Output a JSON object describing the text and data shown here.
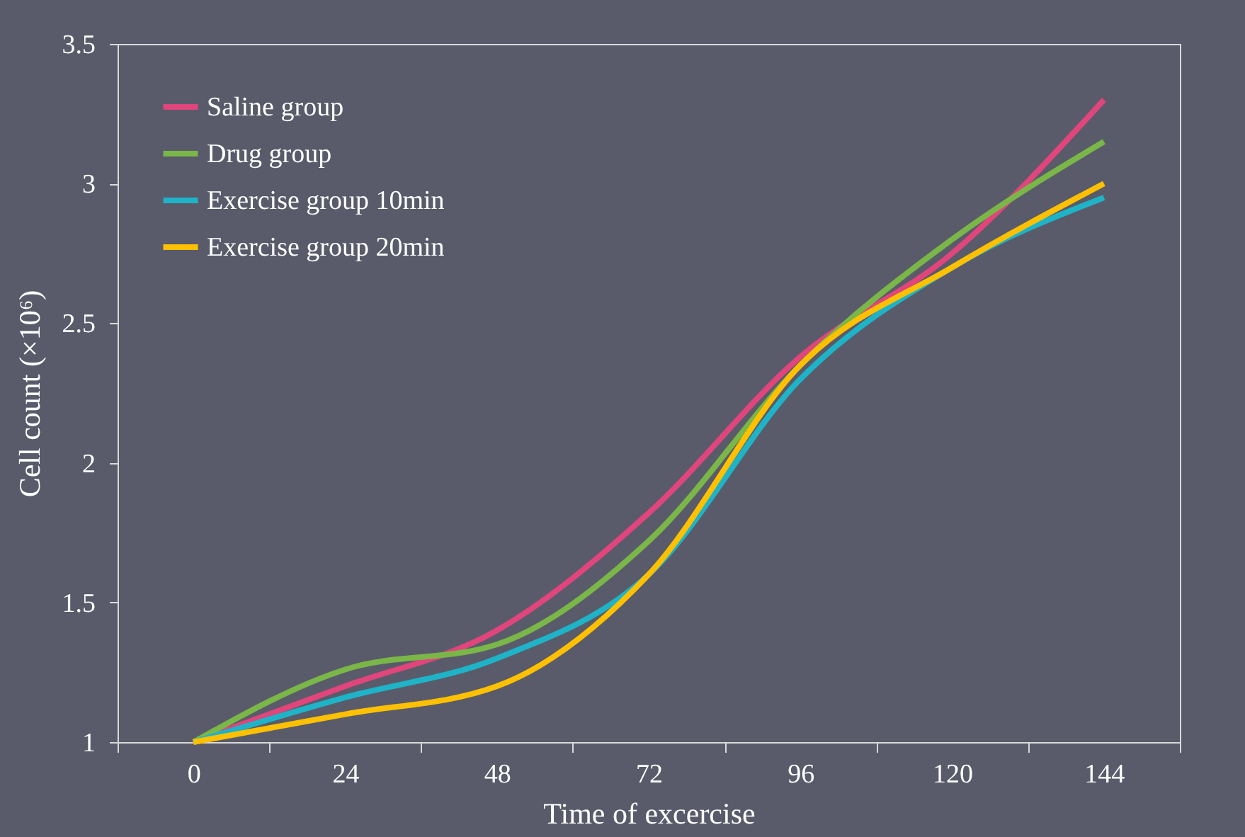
{
  "chart_data": {
    "type": "line",
    "xlabel": "Time of excercise",
    "ylabel": "Cell count (×10⁶)",
    "categories": [
      "0",
      "24",
      "48",
      "72",
      "96",
      "120",
      "144"
    ],
    "series": [
      {
        "name": "Saline group",
        "color": "#e0457b",
        "values": [
          1.0,
          1.2,
          1.4,
          1.82,
          2.38,
          2.75,
          3.3
        ]
      },
      {
        "name": "Drug group",
        "color": "#7ab648",
        "values": [
          1.0,
          1.26,
          1.35,
          1.72,
          2.35,
          2.8,
          3.15
        ]
      },
      {
        "name": "Exercise group 10min",
        "color": "#1fb3c8",
        "values": [
          1.0,
          1.16,
          1.3,
          1.6,
          2.3,
          2.7,
          2.95
        ]
      },
      {
        "name": "Exercise group 20min",
        "color": "#ffc000",
        "values": [
          1.0,
          1.1,
          1.2,
          1.6,
          2.35,
          2.7,
          3.0
        ]
      }
    ],
    "ylim": [
      1,
      3.5
    ],
    "yticks": [
      1,
      1.5,
      2,
      2.5,
      3,
      3.5
    ],
    "grid": false,
    "legend": "top left",
    "marker": "none",
    "line_style": "solid"
  }
}
